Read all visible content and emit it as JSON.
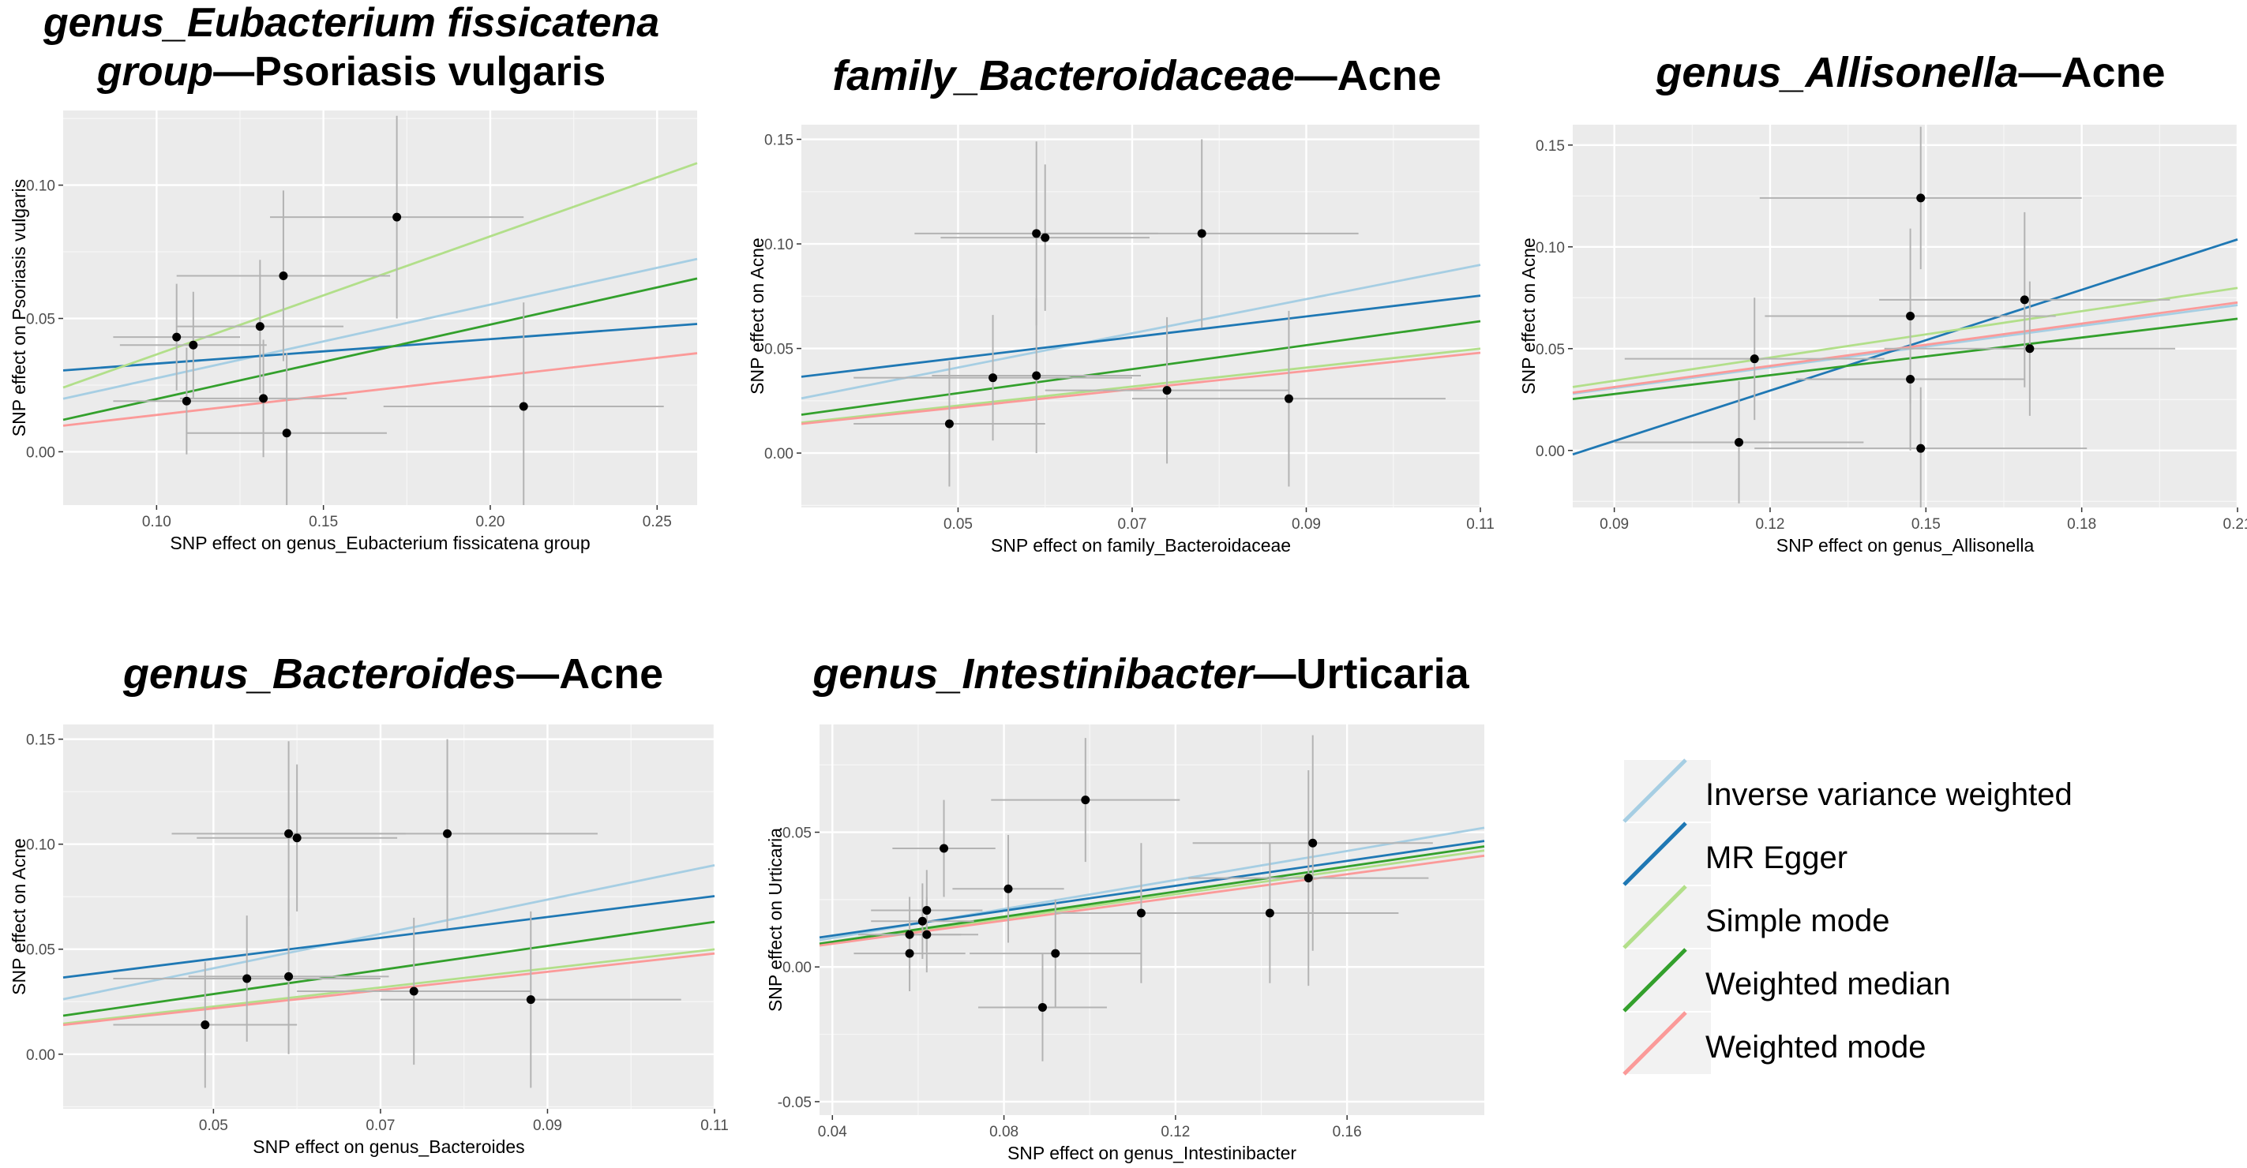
{
  "colors": {
    "ivw": "#a6cee3",
    "egger": "#1f78b4",
    "simple": "#b2df8a",
    "median": "#33a02c",
    "wmode": "#fb9a99",
    "panel_bg": "#ebebeb",
    "point": "#000000",
    "errorbar": "#b3b3b3"
  },
  "legend": [
    {
      "key": "ivw",
      "label": "Inverse variance weighted"
    },
    {
      "key": "egger",
      "label": "MR Egger"
    },
    {
      "key": "simple",
      "label": "Simple mode"
    },
    {
      "key": "median",
      "label": "Weighted median"
    },
    {
      "key": "wmode",
      "label": "Weighted mode"
    }
  ],
  "chart_data": [
    {
      "type": "scatter",
      "title_italic_lines": [
        "genus_Eubacterium fissicatena",
        "group"
      ],
      "title_plain": "—Psoriasis vulgaris",
      "xlabel": "SNP effect on genus_Eubacterium fissicatena group",
      "ylabel": "SNP effect on Psoriasis vulgaris",
      "xlim": [
        0.072,
        0.262
      ],
      "ylim": [
        -0.02,
        0.128
      ],
      "xticks": [
        0.1,
        0.15,
        0.2,
        0.25
      ],
      "xtick_labels": [
        "0.10",
        "0.15",
        "0.20",
        "0.25"
      ],
      "yticks": [
        0.0,
        0.05,
        0.1
      ],
      "ytick_labels": [
        "0.00",
        "0.05",
        "0.10"
      ],
      "points": [
        {
          "x": 0.106,
          "y": 0.043,
          "xerr": 0.019,
          "yerr": 0.02
        },
        {
          "x": 0.111,
          "y": 0.04,
          "xerr": 0.022,
          "yerr": 0.02
        },
        {
          "x": 0.109,
          "y": 0.019,
          "xerr": 0.022,
          "yerr": 0.02
        },
        {
          "x": 0.131,
          "y": 0.047,
          "xerr": 0.025,
          "yerr": 0.025
        },
        {
          "x": 0.132,
          "y": 0.02,
          "xerr": 0.025,
          "yerr": 0.022
        },
        {
          "x": 0.138,
          "y": 0.066,
          "xerr": 0.032,
          "yerr": 0.032
        },
        {
          "x": 0.139,
          "y": 0.007,
          "xerr": 0.03,
          "yerr": 0.03
        },
        {
          "x": 0.172,
          "y": 0.088,
          "xerr": 0.038,
          "yerr": 0.038
        },
        {
          "x": 0.21,
          "y": 0.017,
          "xerr": 0.042,
          "yerr": 0.039
        }
      ],
      "lines": {
        "ivw": {
          "intercept": 0.0,
          "slope": 0.276
        },
        "egger": {
          "intercept": 0.0239,
          "slope": 0.0917
        },
        "simple": {
          "intercept": -0.0078,
          "slope": 0.443
        },
        "median": {
          "intercept": -0.0081,
          "slope": 0.279
        },
        "wmode": {
          "intercept": -0.0005,
          "slope": 0.143
        }
      }
    },
    {
      "type": "scatter",
      "title_italic_lines": [
        "family_Bacteroidaceae"
      ],
      "title_plain": "—Acne",
      "xlabel": "SNP effect on family_Bacteroidaceae",
      "ylabel": "SNP effect on Acne",
      "xlim": [
        0.032,
        0.11
      ],
      "ylim": [
        -0.026,
        0.157
      ],
      "xticks": [
        0.05,
        0.07,
        0.09,
        0.11
      ],
      "xtick_labels": [
        "0.05",
        "0.07",
        "0.09",
        "0.11"
      ],
      "yticks": [
        0.0,
        0.05,
        0.1,
        0.15
      ],
      "ytick_labels": [
        "0.00",
        "0.05",
        "0.10",
        "0.15"
      ],
      "points": [
        {
          "x": 0.049,
          "y": 0.014,
          "xerr": 0.011,
          "yerr": 0.03
        },
        {
          "x": 0.054,
          "y": 0.036,
          "xerr": 0.016,
          "yerr": 0.03
        },
        {
          "x": 0.059,
          "y": 0.105,
          "xerr": 0.014,
          "yerr": 0.044
        },
        {
          "x": 0.06,
          "y": 0.103,
          "xerr": 0.012,
          "yerr": 0.035
        },
        {
          "x": 0.059,
          "y": 0.037,
          "xerr": 0.012,
          "yerr": 0.037
        },
        {
          "x": 0.074,
          "y": 0.03,
          "xerr": 0.014,
          "yerr": 0.035
        },
        {
          "x": 0.078,
          "y": 0.105,
          "xerr": 0.018,
          "yerr": 0.045
        },
        {
          "x": 0.088,
          "y": 0.026,
          "xerr": 0.018,
          "yerr": 0.042
        }
      ],
      "lines": {
        "ivw": {
          "intercept": 0.0,
          "slope": 0.818
        },
        "egger": {
          "intercept": 0.0206,
          "slope": 0.497
        },
        "simple": {
          "intercept": 0.0,
          "slope": 0.454
        },
        "median": {
          "intercept": 0.0,
          "slope": 0.573
        },
        "wmode": {
          "intercept": 0.0,
          "slope": 0.436
        }
      }
    },
    {
      "type": "scatter",
      "title_italic_lines": [
        "genus_Allisonella"
      ],
      "title_plain": "—Acne",
      "xlabel": "SNP effect on genus_Allisonella",
      "ylabel": "SNP effect on Acne",
      "xlim": [
        0.082,
        0.21
      ],
      "ylim": [
        -0.028,
        0.16
      ],
      "xticks": [
        0.09,
        0.12,
        0.15,
        0.18,
        0.21
      ],
      "xtick_labels": [
        "0.09",
        "0.12",
        "0.15",
        "0.18",
        "0.21"
      ],
      "yticks": [
        0.0,
        0.05,
        0.1,
        0.15
      ],
      "ytick_labels": [
        "0.00",
        "0.05",
        "0.10",
        "0.15"
      ],
      "points": [
        {
          "x": 0.114,
          "y": 0.004,
          "xerr": 0.024,
          "yerr": 0.03
        },
        {
          "x": 0.117,
          "y": 0.045,
          "xerr": 0.025,
          "yerr": 0.03
        },
        {
          "x": 0.147,
          "y": 0.066,
          "xerr": 0.028,
          "yerr": 0.043
        },
        {
          "x": 0.147,
          "y": 0.035,
          "xerr": 0.022,
          "yerr": 0.035
        },
        {
          "x": 0.149,
          "y": 0.124,
          "xerr": 0.031,
          "yerr": 0.035
        },
        {
          "x": 0.149,
          "y": 0.001,
          "xerr": 0.032,
          "yerr": 0.03
        },
        {
          "x": 0.169,
          "y": 0.074,
          "xerr": 0.028,
          "yerr": 0.043
        },
        {
          "x": 0.17,
          "y": 0.05,
          "xerr": 0.028,
          "yerr": 0.033
        }
      ],
      "lines": {
        "ivw": {
          "intercept": 0.0,
          "slope": 0.34
        },
        "egger": {
          "intercept": -0.0696,
          "slope": 0.825
        },
        "simple": {
          "intercept": 0.0,
          "slope": 0.38
        },
        "median": {
          "intercept": 0.0,
          "slope": 0.308
        },
        "wmode": {
          "intercept": 0.0,
          "slope": 0.346
        }
      }
    },
    {
      "type": "scatter",
      "title_italic_lines": [
        "genus_Bacteroides"
      ],
      "title_plain": "—Acne",
      "xlabel": "SNP effect on genus_Bacteroides",
      "ylabel": "SNP effect on Acne",
      "xlim": [
        0.032,
        0.11
      ],
      "ylim": [
        -0.026,
        0.157
      ],
      "xticks": [
        0.05,
        0.07,
        0.09,
        0.11
      ],
      "xtick_labels": [
        "0.05",
        "0.07",
        "0.09",
        "0.11"
      ],
      "yticks": [
        0.0,
        0.05,
        0.1,
        0.15
      ],
      "ytick_labels": [
        "0.00",
        "0.05",
        "0.10",
        "0.15"
      ],
      "points": [
        {
          "x": 0.049,
          "y": 0.014,
          "xerr": 0.011,
          "yerr": 0.03
        },
        {
          "x": 0.054,
          "y": 0.036,
          "xerr": 0.016,
          "yerr": 0.03
        },
        {
          "x": 0.059,
          "y": 0.105,
          "xerr": 0.014,
          "yerr": 0.044
        },
        {
          "x": 0.06,
          "y": 0.103,
          "xerr": 0.012,
          "yerr": 0.035
        },
        {
          "x": 0.059,
          "y": 0.037,
          "xerr": 0.012,
          "yerr": 0.037
        },
        {
          "x": 0.074,
          "y": 0.03,
          "xerr": 0.014,
          "yerr": 0.035
        },
        {
          "x": 0.078,
          "y": 0.105,
          "xerr": 0.018,
          "yerr": 0.045
        },
        {
          "x": 0.088,
          "y": 0.026,
          "xerr": 0.018,
          "yerr": 0.042
        }
      ],
      "lines": {
        "ivw": {
          "intercept": 0.0,
          "slope": 0.818
        },
        "egger": {
          "intercept": 0.0206,
          "slope": 0.497
        },
        "simple": {
          "intercept": 0.0,
          "slope": 0.454
        },
        "median": {
          "intercept": 0.0,
          "slope": 0.573
        },
        "wmode": {
          "intercept": 0.0,
          "slope": 0.436
        }
      }
    },
    {
      "type": "scatter",
      "title_italic_lines": [
        "genus_Intestinibacter"
      ],
      "title_plain": "—Urticaria",
      "xlabel": "SNP effect on genus_Intestinibacter",
      "ylabel": "SNP effect on Urticaria",
      "xlim": [
        0.037,
        0.192
      ],
      "ylim": [
        -0.055,
        0.09
      ],
      "xticks": [
        0.04,
        0.08,
        0.12,
        0.16
      ],
      "xtick_labels": [
        "0.04",
        "0.08",
        "0.12",
        "0.16"
      ],
      "yticks": [
        -0.05,
        0.0,
        0.05
      ],
      "ytick_labels": [
        "-0.05",
        "0.00",
        "0.05"
      ],
      "points": [
        {
          "x": 0.058,
          "y": 0.012,
          "xerr": 0.012,
          "yerr": 0.014
        },
        {
          "x": 0.058,
          "y": 0.005,
          "xerr": 0.013,
          "yerr": 0.014
        },
        {
          "x": 0.061,
          "y": 0.017,
          "xerr": 0.012,
          "yerr": 0.014
        },
        {
          "x": 0.062,
          "y": 0.012,
          "xerr": 0.012,
          "yerr": 0.014
        },
        {
          "x": 0.062,
          "y": 0.021,
          "xerr": 0.013,
          "yerr": 0.015
        },
        {
          "x": 0.066,
          "y": 0.044,
          "xerr": 0.012,
          "yerr": 0.018
        },
        {
          "x": 0.081,
          "y": 0.029,
          "xerr": 0.013,
          "yerr": 0.02
        },
        {
          "x": 0.089,
          "y": -0.015,
          "xerr": 0.015,
          "yerr": 0.02
        },
        {
          "x": 0.092,
          "y": 0.005,
          "xerr": 0.02,
          "yerr": 0.02
        },
        {
          "x": 0.099,
          "y": 0.062,
          "xerr": 0.022,
          "yerr": 0.023
        },
        {
          "x": 0.112,
          "y": 0.02,
          "xerr": 0.02,
          "yerr": 0.026
        },
        {
          "x": 0.142,
          "y": 0.02,
          "xerr": 0.03,
          "yerr": 0.026
        },
        {
          "x": 0.151,
          "y": 0.033,
          "xerr": 0.028,
          "yerr": 0.04
        },
        {
          "x": 0.152,
          "y": 0.046,
          "xerr": 0.028,
          "yerr": 0.04
        }
      ],
      "lines": {
        "ivw": {
          "intercept": 0.0,
          "slope": 0.269
        },
        "egger": {
          "intercept": 0.0024,
          "slope": 0.231
        },
        "simple": {
          "intercept": 0.0,
          "slope": 0.225
        },
        "median": {
          "intercept": 0.0,
          "slope": 0.233
        },
        "wmode": {
          "intercept": 0.0,
          "slope": 0.215
        }
      }
    }
  ]
}
